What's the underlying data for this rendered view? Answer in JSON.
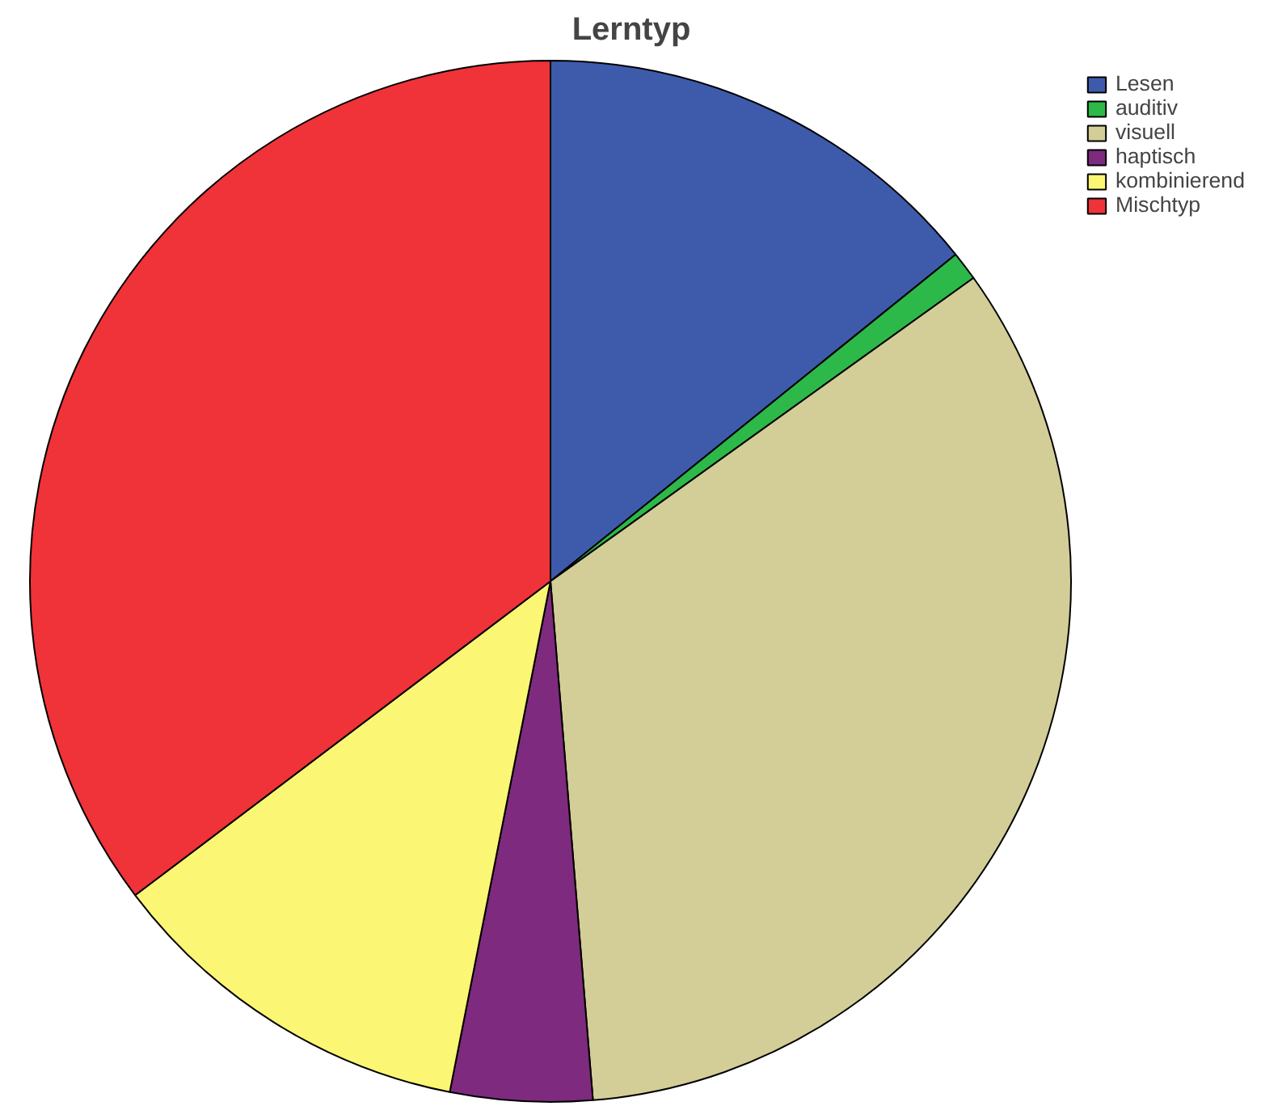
{
  "chart_data": {
    "type": "pie",
    "title": "Lerntyp",
    "categories": [
      "Lesen",
      "auditiv",
      "visuell",
      "haptisch",
      "kombinierend",
      "Mischtyp"
    ],
    "values": [
      14.2,
      0.9,
      33.6,
      4.4,
      11.6,
      35.3
    ],
    "colors": [
      "#3e5bab",
      "#2db84a",
      "#d3ce98",
      "#7e2a7e",
      "#fbf674",
      "#ef3338"
    ],
    "legend": "top right"
  }
}
